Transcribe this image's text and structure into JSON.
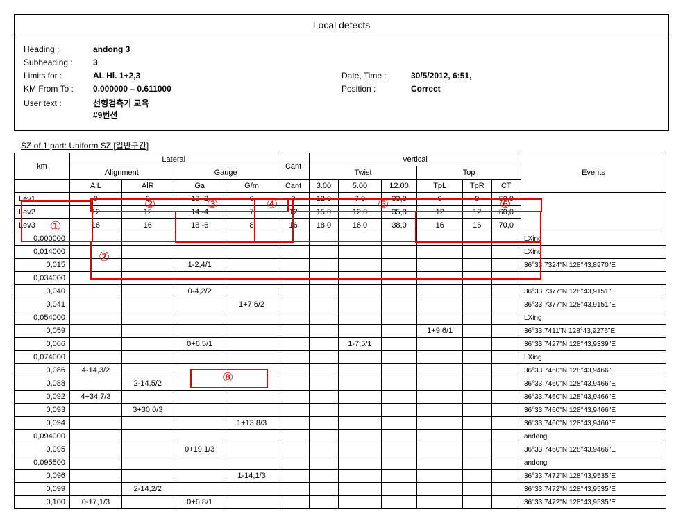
{
  "page_title": "Local defects",
  "header": {
    "heading_lbl": "Heading :",
    "heading": "andong 3",
    "sub_lbl": "Subheading :",
    "subheading": "3",
    "limits_lbl": "Limits for :",
    "limits": "AL Hl. 1+2,3",
    "kmft_lbl": "KM From To :",
    "kmft": "0.000000 – 0.611000",
    "ut_lbl": "User text :",
    "ut1": "선형검측기 교육",
    "ut2": "#9번선",
    "dt_lbl": "Date, Time :",
    "dt": "30/5/2012, 6:51,",
    "pos_lbl": "Position :",
    "pos": "Correct"
  },
  "section_title": "SZ of 1.part: Uniform SZ [일반구간]",
  "cols": {
    "km": "km",
    "lateral": "Lateral",
    "vertical": "Vertical",
    "events": "Events",
    "alignment": "Alignment",
    "gauge": "Gauge",
    "cant": "Cant",
    "twist": "Twist",
    "top": "Top",
    "all": "AlL",
    "alr": "AlR",
    "ga": "Ga",
    "gm": "G/m",
    "cant2": "Cant",
    "t3": "3.00",
    "t5": "5.00",
    "t12": "12.00",
    "tpl": "TpL",
    "tpr": "TpR",
    "ct": "CT"
  },
  "levels": [
    {
      "n": "Lev1",
      "all": "9",
      "alr": "9",
      "ga": "10 -2",
      "gm": "6",
      "cant": "9",
      "t3": "12,0",
      "t5": "7,0",
      "t12": "33,8",
      "tpl": "9",
      "tpr": "9",
      "ct": "50,0"
    },
    {
      "n": "Lev2",
      "all": "12",
      "alr": "12",
      "ga": "14 -4",
      "gm": "7",
      "cant": "12",
      "t3": "15,0",
      "t5": "12,0",
      "t12": "35,8",
      "tpl": "12",
      "tpr": "12",
      "ct": "60,0"
    },
    {
      "n": "Lev3",
      "all": "16",
      "alr": "16",
      "ga": "18 -6",
      "gm": "8",
      "cant": "16",
      "t3": "18,0",
      "t5": "16,0",
      "t12": "38,0",
      "tpl": "16",
      "tpr": "16",
      "ct": "70,0"
    }
  ],
  "rows": [
    {
      "km": "0,000000",
      "ev": "LXing"
    },
    {
      "km": "0,014000",
      "ev": "LXing"
    },
    {
      "km": "0,015",
      "ga": "1-2,4/1",
      "ev": "36°33,7324\"N 128°43,8970\"E"
    },
    {
      "km": "0,034000",
      "ev": ""
    },
    {
      "km": "0,040",
      "ga": "0-4,2/2",
      "ev": "36°33,7377\"N 128°43,9151\"E"
    },
    {
      "km": "0,041",
      "gm": "1+7,6/2",
      "ev": "36°33,7377\"N 128°43,9151\"E"
    },
    {
      "km": "0,054000",
      "ev": "LXing"
    },
    {
      "km": "0,059",
      "tpl": "1+9,6/1",
      "ev": "36°33,7411\"N 128°43,9276\"E"
    },
    {
      "km": "0,066",
      "ga": "0+6,5/1",
      "t5": "1-7,5/1",
      "ev": "36°33,7427\"N 128°43,9339\"E"
    },
    {
      "km": "0,074000",
      "ev": "LXing"
    },
    {
      "km": "0,086",
      "all": "4-14,3/2",
      "ev": "36°33,7460\"N 128°43,9466\"E"
    },
    {
      "km": "0,088",
      "alr": "2-14,5/2",
      "ev": "36°33,7460\"N 128°43,9466\"E"
    },
    {
      "km": "0,092",
      "all": "4+34,7/3",
      "ev": "36°33,7460\"N 128°43,9466\"E"
    },
    {
      "km": "0,093",
      "alr": "3+30,0/3",
      "ev": "36°33,7460\"N 128°43,9466\"E"
    },
    {
      "km": "0,094",
      "gm": "1+13,8/3",
      "ev": "36°33,7460\"N 128°43,9466\"E"
    },
    {
      "km": "0,094000",
      "ev": "andong"
    },
    {
      "km": "0,095",
      "ga": "0+19,1/3",
      "ev": "36°33,7460\"N 128°43,9466\"E"
    },
    {
      "km": "0,095500",
      "ev": "andong"
    },
    {
      "km": "0,096",
      "gm": "1-14,1/3",
      "ev": "36°33,7472\"N 128°43,9535\"E"
    },
    {
      "km": "0,099",
      "alr": "2-14,2/2",
      "ev": "36°33,7472\"N 128°43,9535\"E"
    },
    {
      "km": "0,100",
      "all": "0-17,1/3",
      "ga": "0+6,8/1",
      "ev": "36°33,7472\"N 128°43,9535\"E"
    }
  ],
  "annotations": {
    "n1": "①",
    "n2": "②",
    "n3": "③",
    "n4": "④",
    "n5": "⑤",
    "n6": "⑥",
    "n7": "⑦",
    "n8": "⑧"
  },
  "style": {
    "annot_color": "#e60000",
    "border_color": "#000000",
    "bg": "#ffffff"
  }
}
